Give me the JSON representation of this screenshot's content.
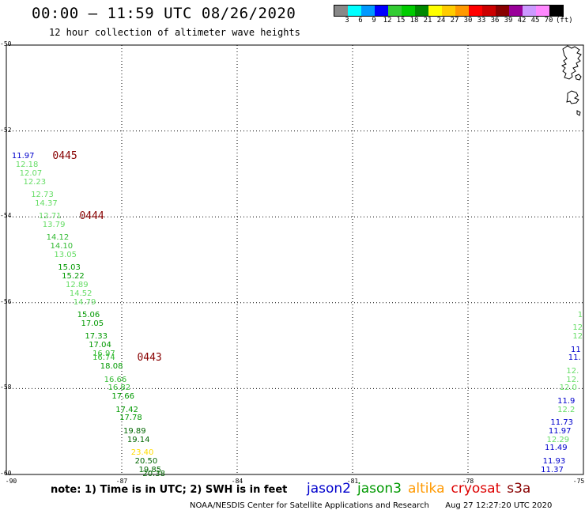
{
  "header": {
    "title": "00:00 – 11:59 UTC 08/26/2020",
    "subtitle": "12 hour collection of altimeter wave heights"
  },
  "legend": {
    "unit_label": "(ft)",
    "bins": [
      {
        "label": "3",
        "color": "#888888"
      },
      {
        "label": "6",
        "color": "#00ffff"
      },
      {
        "label": "9",
        "color": "#0099ff"
      },
      {
        "label": "12",
        "color": "#0000ff"
      },
      {
        "label": "15",
        "color": "#33cc33"
      },
      {
        "label": "18",
        "color": "#00cc00"
      },
      {
        "label": "21",
        "color": "#008800"
      },
      {
        "label": "24",
        "color": "#ffff00"
      },
      {
        "label": "27",
        "color": "#ffcc00"
      },
      {
        "label": "30",
        "color": "#ff9900"
      },
      {
        "label": "33",
        "color": "#ff0000"
      },
      {
        "label": "36",
        "color": "#cc0000"
      },
      {
        "label": "39",
        "color": "#880000"
      },
      {
        "label": "42",
        "color": "#990099"
      },
      {
        "label": "45",
        "color": "#cc99ff"
      },
      {
        "label": "70",
        "color": "#ff88ff"
      },
      {
        "label": "",
        "color": "#000000"
      }
    ]
  },
  "axes": {
    "lat_labels": [
      "-50",
      "-52",
      "-54",
      "-56",
      "-58",
      "-60"
    ],
    "lon_labels": [
      "-90",
      "-87",
      "-84",
      "-81",
      "-78",
      "-75"
    ],
    "lat_range": [
      -60,
      -50
    ],
    "lon_range": [
      -90,
      -75
    ]
  },
  "track_main": {
    "times": [
      {
        "label": "0445",
        "lat": -52.6,
        "lon": -88.8
      },
      {
        "label": "0444",
        "lat": -54.0,
        "lon": -88.1
      },
      {
        "label": "0443",
        "lat": -57.3,
        "lon": -86.6
      }
    ],
    "points": [
      {
        "v": "11.97",
        "lat": -52.6,
        "lon": -89.9,
        "c": "#0000cc"
      },
      {
        "v": "12.18",
        "lat": -52.8,
        "lon": -89.8,
        "c": "#66dd66"
      },
      {
        "v": "12.07",
        "lat": -53.0,
        "lon": -89.7,
        "c": "#66dd66"
      },
      {
        "v": "12.23",
        "lat": -53.2,
        "lon": -89.6,
        "c": "#66dd66"
      },
      {
        "v": "12.73",
        "lat": -53.5,
        "lon": -89.4,
        "c": "#66dd66"
      },
      {
        "v": "14.37",
        "lat": -53.7,
        "lon": -89.3,
        "c": "#66dd66"
      },
      {
        "v": "12.71",
        "lat": -54.0,
        "lon": -89.2,
        "c": "#66dd66"
      },
      {
        "v": "13.79",
        "lat": -54.2,
        "lon": -89.1,
        "c": "#66dd66"
      },
      {
        "v": "14.12",
        "lat": -54.5,
        "lon": -89.0,
        "c": "#33bb33"
      },
      {
        "v": "14.10",
        "lat": -54.7,
        "lon": -88.9,
        "c": "#33bb33"
      },
      {
        "v": "13.05",
        "lat": -54.9,
        "lon": -88.8,
        "c": "#66dd66"
      },
      {
        "v": "15.03",
        "lat": -55.2,
        "lon": -88.7,
        "c": "#009900"
      },
      {
        "v": "15.22",
        "lat": -55.4,
        "lon": -88.6,
        "c": "#009900"
      },
      {
        "v": "12.89",
        "lat": -55.6,
        "lon": -88.5,
        "c": "#66dd66"
      },
      {
        "v": "14.52",
        "lat": -55.8,
        "lon": -88.4,
        "c": "#66dd66"
      },
      {
        "v": "14.79",
        "lat": -56.0,
        "lon": -88.3,
        "c": "#66dd66"
      },
      {
        "v": "15.06",
        "lat": -56.3,
        "lon": -88.2,
        "c": "#009900"
      },
      {
        "v": "17.05",
        "lat": -56.5,
        "lon": -88.1,
        "c": "#009900"
      },
      {
        "v": "17.33",
        "lat": -56.8,
        "lon": -88.0,
        "c": "#009900"
      },
      {
        "v": "17.04",
        "lat": -57.0,
        "lon": -87.9,
        "c": "#009900"
      },
      {
        "v": "16.97",
        "lat": -57.2,
        "lon": -87.8,
        "c": "#33bb33"
      },
      {
        "v": "16.74",
        "lat": -57.3,
        "lon": -87.8,
        "c": "#33bb33"
      },
      {
        "v": "18.08",
        "lat": -57.5,
        "lon": -87.6,
        "c": "#009900"
      },
      {
        "v": "16.66",
        "lat": -57.8,
        "lon": -87.5,
        "c": "#33bb33"
      },
      {
        "v": "16.82",
        "lat": -58.0,
        "lon": -87.4,
        "c": "#33bb33"
      },
      {
        "v": "17.66",
        "lat": -58.2,
        "lon": -87.3,
        "c": "#009900"
      },
      {
        "v": "17.42",
        "lat": -58.5,
        "lon": -87.2,
        "c": "#009900"
      },
      {
        "v": "17.78",
        "lat": -58.7,
        "lon": -87.1,
        "c": "#009900"
      },
      {
        "v": "19.89",
        "lat": -59.0,
        "lon": -87.0,
        "c": "#006600"
      },
      {
        "v": "19.14",
        "lat": -59.2,
        "lon": -86.9,
        "c": "#006600"
      },
      {
        "v": "23.40",
        "lat": -59.5,
        "lon": -86.8,
        "c": "#ffdd00"
      },
      {
        "v": "20.50",
        "lat": -59.7,
        "lon": -86.7,
        "c": "#006600"
      },
      {
        "v": "19.85",
        "lat": -59.9,
        "lon": -86.6,
        "c": "#006600"
      },
      {
        "v": "20.38",
        "lat": -60.0,
        "lon": -86.5,
        "c": "#006600"
      }
    ]
  },
  "track_edge": {
    "points": [
      {
        "v": "1",
        "lat": -56.3,
        "lon": -75.1,
        "c": "#66dd66"
      },
      {
        "v": "12",
        "lat": -56.6,
        "lon": -75.1,
        "c": "#66dd66"
      },
      {
        "v": "12",
        "lat": -56.8,
        "lon": -75.1,
        "c": "#66dd66"
      },
      {
        "v": "11",
        "lat": -57.1,
        "lon": -75.15,
        "c": "#0000cc"
      },
      {
        "v": "11.",
        "lat": -57.3,
        "lon": -75.15,
        "c": "#0000cc"
      },
      {
        "v": "12.",
        "lat": -57.6,
        "lon": -75.2,
        "c": "#66dd66"
      },
      {
        "v": "12.",
        "lat": -57.8,
        "lon": -75.2,
        "c": "#66dd66"
      },
      {
        "v": "12.0",
        "lat": -58.0,
        "lon": -75.25,
        "c": "#66dd66"
      },
      {
        "v": "11.9",
        "lat": -58.3,
        "lon": -75.3,
        "c": "#0000cc"
      },
      {
        "v": "12.2",
        "lat": -58.5,
        "lon": -75.3,
        "c": "#66dd66"
      },
      {
        "v": "11.73",
        "lat": -58.8,
        "lon": -75.35,
        "c": "#0000cc"
      },
      {
        "v": "11.97",
        "lat": -59.0,
        "lon": -75.4,
        "c": "#0000cc"
      },
      {
        "v": "12.29",
        "lat": -59.2,
        "lon": -75.45,
        "c": "#66dd66"
      },
      {
        "v": "11.49",
        "lat": -59.4,
        "lon": -75.5,
        "c": "#0000cc"
      },
      {
        "v": "11.93",
        "lat": -59.7,
        "lon": -75.55,
        "c": "#0000cc"
      },
      {
        "v": "11.37",
        "lat": -59.9,
        "lon": -75.6,
        "c": "#0000cc"
      }
    ]
  },
  "footer": {
    "note": "note: 1) Time is in UTC; 2) SWH is in feet",
    "satellites": [
      {
        "name": "jason2",
        "color": "#0000cc"
      },
      {
        "name": "jason3",
        "color": "#009900"
      },
      {
        "name": "altika",
        "color": "#ff9900"
      },
      {
        "name": "cryosat",
        "color": "#dd0000"
      },
      {
        "name": "s3a",
        "color": "#880000"
      }
    ],
    "credit": "NOAA/NESDIS Center for Satellite Applications and Research",
    "timestamp": "Aug 27 12:27:20 UTC 2020"
  },
  "colors": {
    "time_label": "#880000"
  }
}
